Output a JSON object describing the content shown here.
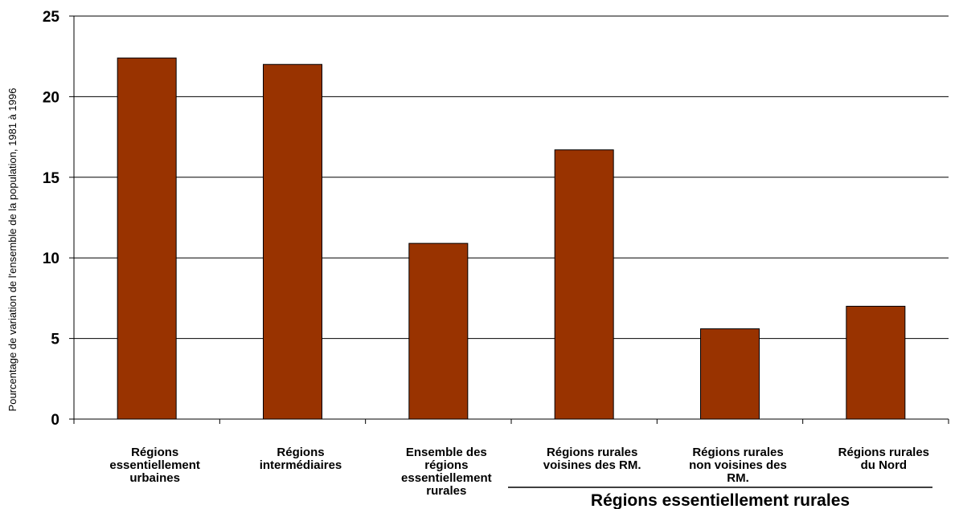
{
  "chart_data": {
    "type": "bar",
    "ylabel": "Pourcentage de variation de l'ensemble de la population, 1981 à 1996",
    "xlabel": "",
    "ylim": [
      0,
      25
    ],
    "yticks": [
      0,
      5,
      10,
      15,
      20,
      25
    ],
    "grid": true,
    "bar_color": "#993300",
    "categories": [
      [
        "Régions",
        "essentiellement",
        "urbaines"
      ],
      [
        "Régions",
        "intermédiaires"
      ],
      [
        "Ensemble des",
        "régions",
        "essentiellement",
        "rurales"
      ],
      [
        "Régions rurales",
        "voisines des RM."
      ],
      [
        "Régions rurales",
        "non voisines des",
        "RM."
      ],
      [
        "Régions rurales",
        "du Nord"
      ]
    ],
    "values": [
      22.4,
      22.0,
      10.9,
      16.7,
      5.6,
      7.0
    ],
    "group_label": {
      "text": "Régions essentiellement rurales",
      "spans_categories": [
        3,
        5
      ]
    }
  }
}
